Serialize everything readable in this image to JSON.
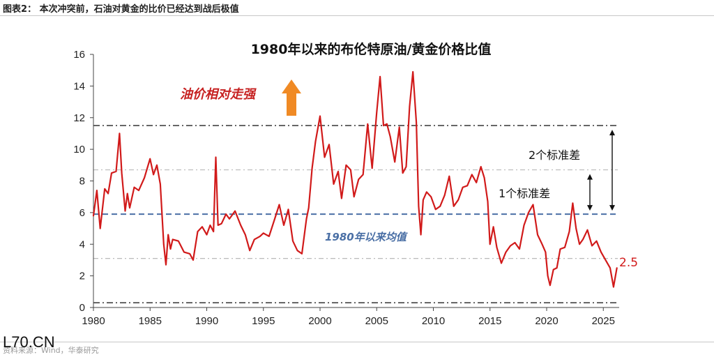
{
  "figure": {
    "caption": "图表2：  本次冲突前，石油对黄金的比价已经达到战后极值",
    "source": "资料来源：Wind，华泰研究",
    "watermark": "L70.CN"
  },
  "chart_data": {
    "type": "line",
    "title": "1980年以来的布伦特原油/黄金价格比值",
    "xlabel": "",
    "ylabel": "",
    "xlim": [
      1980,
      2026.4
    ],
    "ylim": [
      0,
      16
    ],
    "x_ticks": [
      "1980",
      "1985",
      "1990",
      "1995",
      "2000",
      "2005",
      "2010",
      "2015",
      "2020",
      "2025"
    ],
    "y_ticks": [
      "0",
      "2",
      "4",
      "6",
      "8",
      "10",
      "12",
      "14",
      "16"
    ],
    "grid": false,
    "colors": {
      "series": "#d11a1a",
      "mean_line": "#4a6fa5",
      "two_sd_lines": "#222222",
      "one_sd_lines": "#b0b0b0",
      "arrow": "#f08a24",
      "axis": "#444444"
    },
    "reference_lines": [
      {
        "name": "mean",
        "value": 5.9,
        "style": "dashed"
      },
      {
        "name": "+1sd",
        "value": 8.7,
        "style": "dash-dot"
      },
      {
        "name": "-1sd",
        "value": 3.1,
        "style": "dash-dot"
      },
      {
        "name": "+2sd",
        "value": 11.5,
        "style": "dash-dot"
      },
      {
        "name": "-2sd",
        "value": 0.3,
        "style": "dash-dot"
      }
    ],
    "annotations": {
      "oil_stronger": "油价相对走强",
      "mean_label": "1980年以来均值",
      "one_sd": "1个标准差",
      "two_sd": "2个标准差",
      "last_value": "2.5"
    },
    "series": [
      {
        "x": [
          1980.0,
          1980.3,
          1980.6,
          1981.0,
          1981.3,
          1981.6,
          1982.0,
          1982.3,
          1982.5,
          1982.8,
          1983.0,
          1983.2,
          1983.6,
          1984.0,
          1984.5,
          1985.0,
          1985.3,
          1985.6,
          1985.9,
          1986.2,
          1986.4,
          1986.6,
          1986.8,
          1987.0,
          1987.5,
          1988.0,
          1988.5,
          1988.8,
          1989.2,
          1989.6,
          1990.0,
          1990.3,
          1990.6,
          1990.8,
          1991.0,
          1991.3,
          1991.7,
          1992.0,
          1992.5,
          1993.0,
          1993.4,
          1993.8,
          1994.2,
          1994.7,
          1995.0,
          1995.5,
          1996.0,
          1996.4,
          1996.8,
          1997.2,
          1997.6,
          1998.0,
          1998.4,
          1998.8,
          1999.0,
          1999.3,
          1999.6,
          2000.0,
          2000.4,
          2000.8,
          2001.2,
          2001.6,
          2001.9,
          2002.3,
          2002.7,
          2003.0,
          2003.4,
          2003.8,
          2004.2,
          2004.6,
          2005.0,
          2005.3,
          2005.6,
          2005.9,
          2006.2,
          2006.6,
          2007.0,
          2007.3,
          2007.6,
          2007.9,
          2008.2,
          2008.5,
          2008.7,
          2008.9,
          2009.1,
          2009.4,
          2009.8,
          2010.2,
          2010.6,
          2011.0,
          2011.4,
          2011.8,
          2012.2,
          2012.6,
          2013.0,
          2013.4,
          2013.8,
          2014.2,
          2014.5,
          2014.8,
          2015.0,
          2015.3,
          2015.6,
          2016.0,
          2016.4,
          2016.8,
          2017.2,
          2017.6,
          2018.0,
          2018.4,
          2018.8,
          2019.2,
          2019.6,
          2019.9,
          2020.1,
          2020.3,
          2020.6,
          2020.9,
          2021.2,
          2021.6,
          2022.0,
          2022.3,
          2022.6,
          2022.9,
          2023.2,
          2023.6,
          2024.0,
          2024.4,
          2024.8,
          2025.2,
          2025.6,
          2025.9,
          2026.2
        ],
        "values": [
          5.8,
          7.4,
          5.0,
          7.5,
          7.2,
          8.5,
          8.6,
          11.0,
          8.5,
          6.1,
          7.2,
          6.3,
          7.6,
          7.4,
          8.2,
          9.4,
          8.4,
          9.0,
          7.8,
          4.0,
          2.7,
          4.6,
          3.7,
          4.3,
          4.2,
          3.5,
          3.4,
          3.0,
          4.8,
          5.1,
          4.6,
          5.2,
          4.8,
          9.5,
          5.2,
          5.3,
          5.9,
          5.6,
          6.1,
          5.2,
          4.6,
          3.6,
          4.3,
          4.5,
          4.7,
          4.5,
          5.6,
          6.5,
          5.2,
          6.2,
          4.2,
          3.6,
          3.4,
          5.6,
          6.3,
          8.8,
          10.5,
          12.1,
          9.5,
          10.3,
          7.8,
          8.6,
          6.9,
          9.0,
          8.7,
          7.0,
          8.1,
          8.4,
          11.6,
          8.8,
          12.3,
          14.6,
          11.5,
          11.6,
          10.8,
          9.2,
          11.4,
          8.5,
          8.9,
          12.7,
          14.9,
          11.7,
          6.4,
          4.6,
          6.8,
          7.3,
          7.0,
          6.2,
          6.4,
          7.1,
          8.3,
          6.4,
          6.8,
          7.6,
          7.7,
          8.4,
          7.9,
          8.9,
          8.2,
          6.7,
          4.0,
          5.1,
          3.8,
          2.8,
          3.5,
          3.9,
          4.1,
          3.7,
          5.2,
          6.0,
          6.5,
          4.6,
          4.0,
          3.5,
          2.0,
          1.4,
          2.4,
          2.5,
          3.7,
          3.8,
          4.8,
          6.6,
          5.0,
          4.0,
          4.3,
          4.9,
          3.9,
          4.2,
          3.5,
          3.0,
          2.5,
          1.3,
          2.5
        ]
      }
    ]
  }
}
